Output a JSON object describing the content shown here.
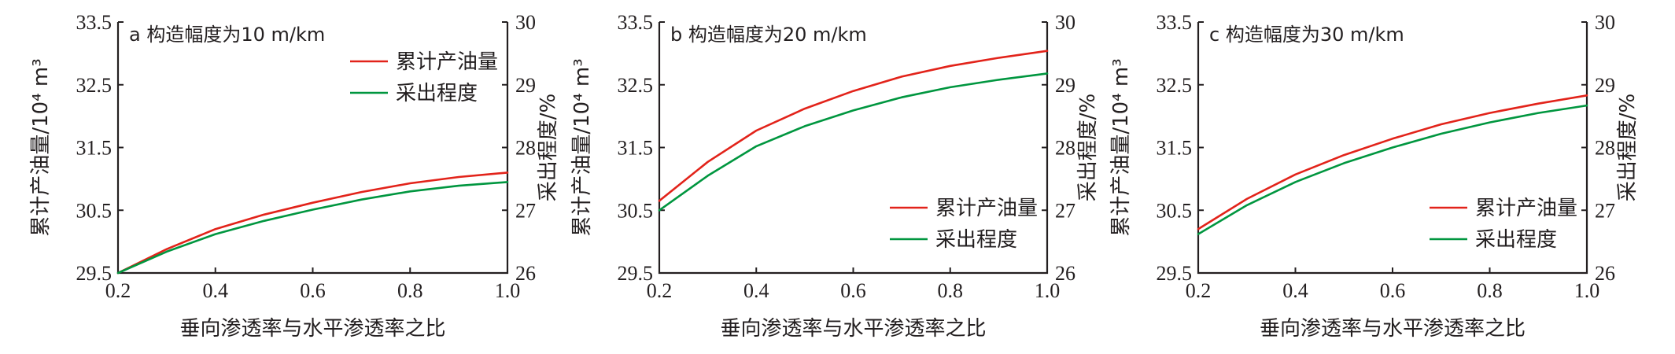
{
  "chart_data": [
    {
      "type": "line",
      "title": "a 构造幅度为10 m/km",
      "xlabel": "垂向渗透率与水平渗透率之比",
      "ylabel": "累计产油量/10⁴ m³",
      "y2label": "采出程度/%",
      "xlim": [
        0.2,
        1.0
      ],
      "ylim": [
        29.5,
        33.5
      ],
      "y2lim": [
        26,
        30
      ],
      "xticks": [
        "0.2",
        "0.4",
        "0.6",
        "0.8",
        "1.0"
      ],
      "yticks": [
        "29.5",
        "30.5",
        "31.5",
        "32.5",
        "33.5"
      ],
      "y2ticks": [
        "26",
        "27",
        "28",
        "29",
        "30"
      ],
      "legend_position": "top-right",
      "series": [
        {
          "name": "累计产油量",
          "axis": "left",
          "color": "#e2231a",
          "x": [
            0.2,
            0.3,
            0.4,
            0.5,
            0.6,
            0.7,
            0.8,
            0.9,
            1.0
          ],
          "y": [
            29.5,
            29.88,
            30.2,
            30.43,
            30.62,
            30.79,
            30.93,
            31.03,
            31.1
          ]
        },
        {
          "name": "采出程度",
          "axis": "right",
          "color": "#00963f",
          "x": [
            0.2,
            0.3,
            0.4,
            0.5,
            0.6,
            0.7,
            0.8,
            0.9,
            1.0
          ],
          "y": [
            26.0,
            26.34,
            26.62,
            26.83,
            27.01,
            27.17,
            27.3,
            27.39,
            27.45
          ]
        }
      ]
    },
    {
      "type": "line",
      "title": "b 构造幅度为20 m/km",
      "xlabel": "垂向渗透率与水平渗透率之比",
      "ylabel": "累计产油量/10⁴ m³",
      "y2label": "采出程度/%",
      "xlim": [
        0.2,
        1.0
      ],
      "ylim": [
        29.5,
        33.5
      ],
      "y2lim": [
        26,
        30
      ],
      "xticks": [
        "0.2",
        "0.4",
        "0.6",
        "0.8",
        "1.0"
      ],
      "yticks": [
        "29.5",
        "30.5",
        "31.5",
        "32.5",
        "33.5"
      ],
      "y2ticks": [
        "26",
        "27",
        "28",
        "29",
        "30"
      ],
      "legend_position": "bottom-right",
      "series": [
        {
          "name": "累计产油量",
          "axis": "left",
          "color": "#e2231a",
          "x": [
            0.2,
            0.3,
            0.4,
            0.5,
            0.6,
            0.7,
            0.8,
            0.9,
            1.0
          ],
          "y": [
            30.65,
            31.27,
            31.77,
            32.12,
            32.4,
            32.63,
            32.8,
            32.93,
            33.04
          ]
        },
        {
          "name": "采出程度",
          "axis": "right",
          "color": "#00963f",
          "x": [
            0.2,
            0.3,
            0.4,
            0.5,
            0.6,
            0.7,
            0.8,
            0.9,
            1.0
          ],
          "y": [
            27.0,
            27.55,
            28.02,
            28.34,
            28.59,
            28.8,
            28.96,
            29.08,
            29.18
          ]
        }
      ]
    },
    {
      "type": "line",
      "title": "c 构造幅度为30 m/km",
      "xlabel": "垂向渗透率与水平渗透率之比",
      "ylabel": "累计产油量/10⁴ m³",
      "y2label": "采出程度/%",
      "xlim": [
        0.2,
        1.0
      ],
      "ylim": [
        29.5,
        33.5
      ],
      "y2lim": [
        26,
        30
      ],
      "xticks": [
        "0.2",
        "0.4",
        "0.6",
        "0.8",
        "1.0"
      ],
      "yticks": [
        "29.5",
        "30.5",
        "31.5",
        "32.5",
        "33.5"
      ],
      "y2ticks": [
        "26",
        "27",
        "28",
        "29",
        "30"
      ],
      "legend_position": "bottom-right",
      "series": [
        {
          "name": "累计产油量",
          "axis": "left",
          "color": "#e2231a",
          "x": [
            0.2,
            0.3,
            0.4,
            0.5,
            0.6,
            0.7,
            0.8,
            0.9,
            1.0
          ],
          "y": [
            30.2,
            30.68,
            31.07,
            31.38,
            31.64,
            31.87,
            32.05,
            32.2,
            32.33
          ]
        },
        {
          "name": "采出程度",
          "axis": "right",
          "color": "#00963f",
          "x": [
            0.2,
            0.3,
            0.4,
            0.5,
            0.6,
            0.7,
            0.8,
            0.9,
            1.0
          ],
          "y": [
            26.62,
            27.08,
            27.45,
            27.75,
            28.0,
            28.22,
            28.4,
            28.55,
            28.67
          ]
        }
      ]
    }
  ]
}
